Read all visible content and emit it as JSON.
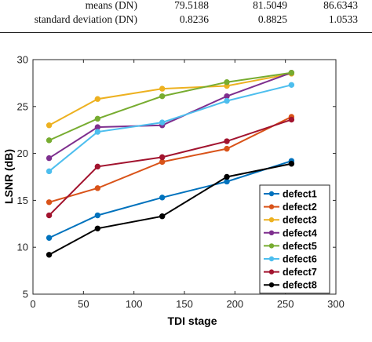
{
  "table": {
    "rows": [
      {
        "label": "means (DN)",
        "v1": "79.5188",
        "v2": "81.5049",
        "v3": "86.6343"
      },
      {
        "label": "standard deviation (DN)",
        "v1": "0.8236",
        "v2": "0.8825",
        "v3": "1.0533"
      }
    ]
  },
  "chart_data": {
    "type": "line",
    "title": "",
    "xlabel": "TDI stage",
    "ylabel": "LSNR (dB)",
    "xlim": [
      0,
      300
    ],
    "ylim": [
      5,
      30
    ],
    "xticks": [
      0,
      50,
      100,
      150,
      200,
      250,
      300
    ],
    "yticks": [
      5,
      10,
      15,
      20,
      25,
      30
    ],
    "grid": false,
    "legend_position": "bottom-right",
    "x": [
      16,
      64,
      128,
      192,
      256
    ],
    "series": [
      {
        "name": "defect1",
        "color": "#0072BD",
        "values": [
          11.0,
          13.4,
          15.3,
          17.0,
          19.2
        ]
      },
      {
        "name": "defect2",
        "color": "#D95319",
        "values": [
          14.8,
          16.3,
          19.1,
          20.5,
          23.9
        ]
      },
      {
        "name": "defect3",
        "color": "#EDB120",
        "values": [
          23.0,
          25.8,
          26.9,
          27.2,
          28.5
        ]
      },
      {
        "name": "defect4",
        "color": "#7E2F8E",
        "values": [
          19.5,
          22.8,
          23.0,
          26.1,
          28.6
        ]
      },
      {
        "name": "defect5",
        "color": "#77AC30",
        "values": [
          21.4,
          23.7,
          26.1,
          27.6,
          28.6
        ]
      },
      {
        "name": "defect6",
        "color": "#4DBEEE",
        "values": [
          18.1,
          22.3,
          23.3,
          25.6,
          27.3
        ]
      },
      {
        "name": "defect7",
        "color": "#A2142F",
        "values": [
          13.4,
          18.6,
          19.6,
          21.3,
          23.6
        ]
      },
      {
        "name": "defect8",
        "color": "#000000",
        "values": [
          9.2,
          12.0,
          13.3,
          17.5,
          18.9
        ]
      }
    ]
  }
}
